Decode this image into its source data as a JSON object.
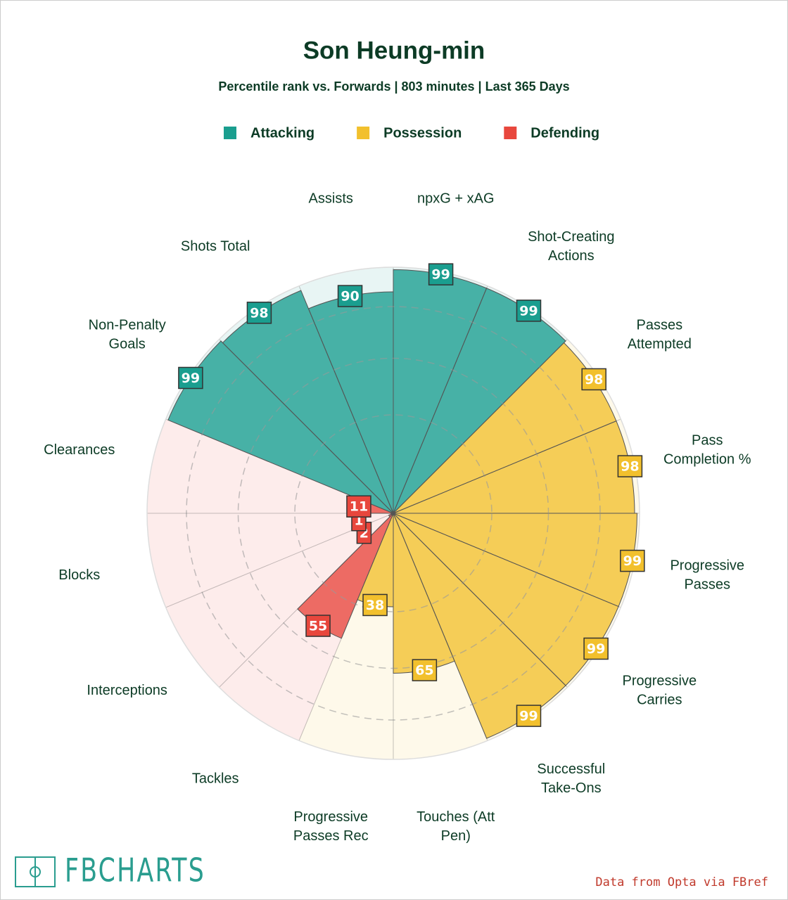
{
  "chart_data": {
    "type": "pizza",
    "title": "Son Heung-min",
    "subtitle": "Percentile rank vs. Forwards | 803 minutes | Last 365 Days",
    "categories": [
      "npxG + xAG",
      "Shot-Creating Actions",
      "Passes Attempted",
      "Pass Completion %",
      "Progressive Passes",
      "Progressive Carries",
      "Successful Take-Ons",
      "Touches (Att Pen)",
      "Progressive Passes Rec",
      "Tackles",
      "Interceptions",
      "Blocks",
      "Clearances",
      "Non-Penalty Goals",
      "Shots Total",
      "Assists"
    ],
    "series": [
      {
        "name": "Attacking",
        "color": "#1a9e8f",
        "values": [
          99,
          99,
          null,
          null,
          null,
          null,
          null,
          null,
          null,
          null,
          null,
          null,
          null,
          99,
          98,
          90
        ]
      },
      {
        "name": "Possession",
        "color": "#f2c02d",
        "values": [
          null,
          null,
          98,
          98,
          99,
          99,
          99,
          65,
          38,
          null,
          null,
          null,
          null,
          null,
          null,
          null
        ]
      },
      {
        "name": "Defending",
        "color": "#e8473d",
        "values": [
          null,
          null,
          null,
          null,
          null,
          null,
          null,
          null,
          null,
          55,
          2,
          1,
          11,
          null,
          null,
          null
        ]
      }
    ],
    "rlim": [
      0,
      100
    ],
    "rticks": [
      40,
      63,
      84
    ],
    "source": "Data from Opta via FBref",
    "logo": "FBCHARTS"
  }
}
